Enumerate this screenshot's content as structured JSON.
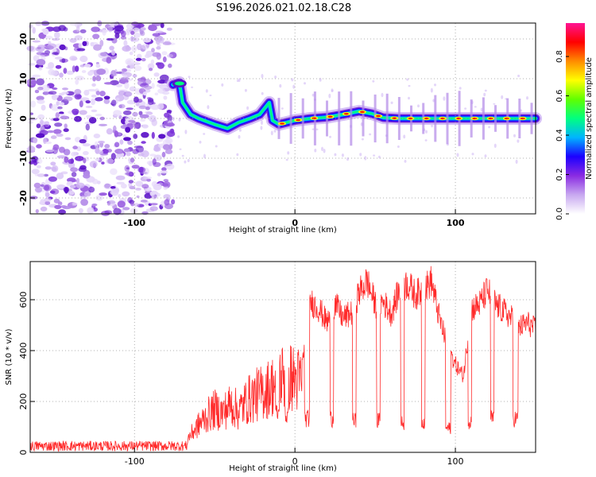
{
  "title": "S196.2026.021.02.18.C28",
  "chart_data": [
    {
      "type": "heatmap",
      "xlabel": "Height of straight line (km)",
      "ylabel": "Frequency (Hz)",
      "xlim": [
        -165,
        150
      ],
      "ylim": [
        -24,
        24
      ],
      "x_ticks": [
        -100,
        0,
        100
      ],
      "y_ticks": [
        -20,
        -10,
        0,
        10,
        20
      ],
      "colorbar": {
        "label": "Normalized spectral amplitude",
        "range": [
          0,
          0.97
        ],
        "ticks": [
          0.0,
          0.2,
          0.4,
          0.6,
          0.8
        ],
        "tick_labels": [
          "0.0",
          "0.2",
          "0.4",
          "0.6",
          "0.8"
        ],
        "colors": [
          "#ffffff",
          "#c8a8f0",
          "#8a2be2",
          "#1c00ff",
          "#00b4ff",
          "#00ff80",
          "#60ff00",
          "#ffff00",
          "#ff8c00",
          "#ff0000",
          "#ff1493"
        ]
      },
      "ridge": {
        "noise_region_x": [
          -165,
          -76
        ],
        "onset_x": -76,
        "path": [
          [
            -76,
            8.5
          ],
          [
            -72,
            9
          ],
          [
            -70,
            4
          ],
          [
            -65,
            1
          ],
          [
            -60,
            0
          ],
          [
            -50,
            -1.5
          ],
          [
            -42,
            -2.5
          ],
          [
            -35,
            -1
          ],
          [
            -28,
            0
          ],
          [
            -22,
            1
          ],
          [
            -18,
            3
          ],
          [
            -16,
            4
          ],
          [
            -14,
            -0.5
          ],
          [
            -10,
            -1.5
          ],
          [
            -5,
            -1
          ],
          [
            0,
            -0.5
          ],
          [
            10,
            0
          ],
          [
            20,
            0.3
          ],
          [
            30,
            1
          ],
          [
            40,
            1.8
          ],
          [
            48,
            1.2
          ],
          [
            55,
            0.2
          ],
          [
            65,
            0
          ],
          [
            80,
            0
          ],
          [
            100,
            0
          ],
          [
            120,
            0
          ],
          [
            150,
            0
          ]
        ]
      }
    },
    {
      "type": "line",
      "xlabel": "Height of straight line (km)",
      "ylabel": "SNR (10 * v/v)",
      "xlim": [
        -165,
        150
      ],
      "ylim": [
        0,
        750
      ],
      "x_ticks": [
        -100,
        0,
        100
      ],
      "y_ticks": [
        0,
        200,
        400,
        600
      ],
      "series_color": "#ff2a2a",
      "noise_floor_x": [
        -165,
        -67
      ],
      "noise_floor_level": [
        5,
        45
      ],
      "envelope": [
        [
          -67,
          80
        ],
        [
          -60,
          160
        ],
        [
          -55,
          210
        ],
        [
          -50,
          250
        ],
        [
          -45,
          230
        ],
        [
          -40,
          280
        ],
        [
          -35,
          240
        ],
        [
          -30,
          300
        ],
        [
          -25,
          330
        ],
        [
          -20,
          350
        ],
        [
          -15,
          380
        ],
        [
          -10,
          420
        ],
        [
          -5,
          460
        ],
        [
          0,
          420
        ],
        [
          5,
          420
        ],
        [
          10,
          650
        ],
        [
          15,
          620
        ],
        [
          20,
          560
        ],
        [
          25,
          640
        ],
        [
          30,
          580
        ],
        [
          35,
          600
        ],
        [
          40,
          690
        ],
        [
          45,
          740
        ],
        [
          50,
          640
        ],
        [
          55,
          650
        ],
        [
          60,
          600
        ],
        [
          65,
          700
        ],
        [
          70,
          730
        ],
        [
          75,
          680
        ],
        [
          80,
          700
        ],
        [
          85,
          740
        ],
        [
          90,
          580
        ],
        [
          95,
          460
        ],
        [
          100,
          380
        ],
        [
          105,
          330
        ],
        [
          110,
          620
        ],
        [
          115,
          640
        ],
        [
          120,
          700
        ],
        [
          125,
          640
        ],
        [
          130,
          610
        ],
        [
          135,
          580
        ],
        [
          140,
          540
        ],
        [
          145,
          560
        ],
        [
          150,
          530
        ]
      ],
      "dropouts": [
        [
          -12,
          -10,
          160
        ],
        [
          -6,
          -4,
          150
        ],
        [
          6,
          9,
          140
        ],
        [
          22,
          24,
          140
        ],
        [
          36,
          38,
          130
        ],
        [
          51,
          53,
          130
        ],
        [
          66,
          68,
          120
        ],
        [
          79,
          81,
          130
        ],
        [
          94,
          97,
          100
        ],
        [
          108,
          110,
          130
        ],
        [
          122,
          124,
          140
        ],
        [
          136,
          139,
          140
        ]
      ]
    }
  ]
}
